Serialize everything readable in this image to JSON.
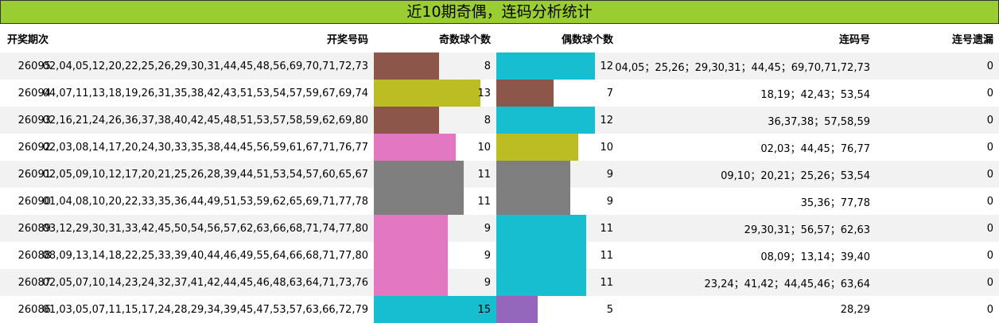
{
  "title": "近10期奇偶，连码分析统计",
  "headers": {
    "period": "开奖期次",
    "numbers": "开奖号码",
    "odd": "奇数球个数",
    "even": "偶数球个数",
    "consec": "连码号",
    "miss": "连号遗漏"
  },
  "colors": {
    "header": "#9ACD32",
    "bar_8": "#8C564B",
    "bar_13": "#BCBD22",
    "bar_10": "#E377C2",
    "bar_11": "#17BECF",
    "bar_12": "#17BECF",
    "bar_9": "#7F7F7F",
    "bar_15": "#17BECF",
    "bar_7": "#8C564B",
    "bar_5": "#9467BD"
  },
  "rows": [
    {
      "period": "26095",
      "numbers": "02,04,05,12,20,22,25,26,29,30,31,44,45,48,56,69,70,71,72,73",
      "odd": 8,
      "even": 12,
      "odd_color": "#8C564B",
      "even_color": "#17BECF",
      "consec": "04,05；25,26；29,30,31；44,45；69,70,71,72,73",
      "miss": "0"
    },
    {
      "period": "26094",
      "numbers": "04,07,11,13,18,19,26,31,35,38,42,43,51,53,54,57,59,67,69,74",
      "odd": 13,
      "even": 7,
      "odd_color": "#BCBD22",
      "even_color": "#8C564B",
      "consec": "18,19；42,43；53,54",
      "miss": "0"
    },
    {
      "period": "26093",
      "numbers": "02,16,21,24,26,36,37,38,40,42,45,48,51,53,57,58,59,62,69,80",
      "odd": 8,
      "even": 12,
      "odd_color": "#8C564B",
      "even_color": "#17BECF",
      "consec": "36,37,38；57,58,59",
      "miss": "0"
    },
    {
      "period": "26092",
      "numbers": "02,03,08,14,17,20,24,30,33,35,38,44,45,56,59,61,67,71,76,77",
      "odd": 10,
      "even": 10,
      "odd_color": "#E377C2",
      "even_color": "#BCBD22",
      "consec": "02,03；44,45；76,77",
      "miss": "0"
    },
    {
      "period": "26091",
      "numbers": "02,05,09,10,12,17,20,21,25,26,28,39,44,51,53,54,57,60,65,67",
      "odd": 11,
      "even": 9,
      "odd_color": "#7F7F7F",
      "even_color": "#7F7F7F",
      "consec": "09,10；20,21；25,26；53,54",
      "miss": "0"
    },
    {
      "period": "26090",
      "numbers": "01,04,08,10,20,22,33,35,36,44,49,51,53,59,62,65,69,71,77,78",
      "odd": 11,
      "even": 9,
      "odd_color": "#7F7F7F",
      "even_color": "#7F7F7F",
      "consec": "35,36；77,78",
      "miss": "0"
    },
    {
      "period": "26089",
      "numbers": "03,12,29,30,31,33,42,45,50,54,56,57,62,63,66,68,71,74,77,80",
      "odd": 9,
      "even": 11,
      "odd_color": "#E377C2",
      "even_color": "#17BECF",
      "consec": "29,30,31；56,57；62,63",
      "miss": "0"
    },
    {
      "period": "26088",
      "numbers": "08,09,13,14,18,22,25,33,39,40,44,46,49,55,64,66,68,71,77,80",
      "odd": 9,
      "even": 11,
      "odd_color": "#E377C2",
      "even_color": "#17BECF",
      "consec": "08,09；13,14；39,40",
      "miss": "0"
    },
    {
      "period": "26087",
      "numbers": "02,05,07,10,14,23,24,32,37,41,42,44,45,46,48,63,64,71,73,76",
      "odd": 9,
      "even": 11,
      "odd_color": "#E377C2",
      "even_color": "#17BECF",
      "consec": "23,24；41,42；44,45,46；63,64",
      "miss": "0"
    },
    {
      "period": "26086",
      "numbers": "01,03,05,07,11,15,17,24,28,29,34,39,45,47,53,57,63,66,72,79",
      "odd": 15,
      "even": 5,
      "odd_color": "#17BECF",
      "even_color": "#9467BD",
      "consec": "28,29",
      "miss": "0"
    }
  ]
}
